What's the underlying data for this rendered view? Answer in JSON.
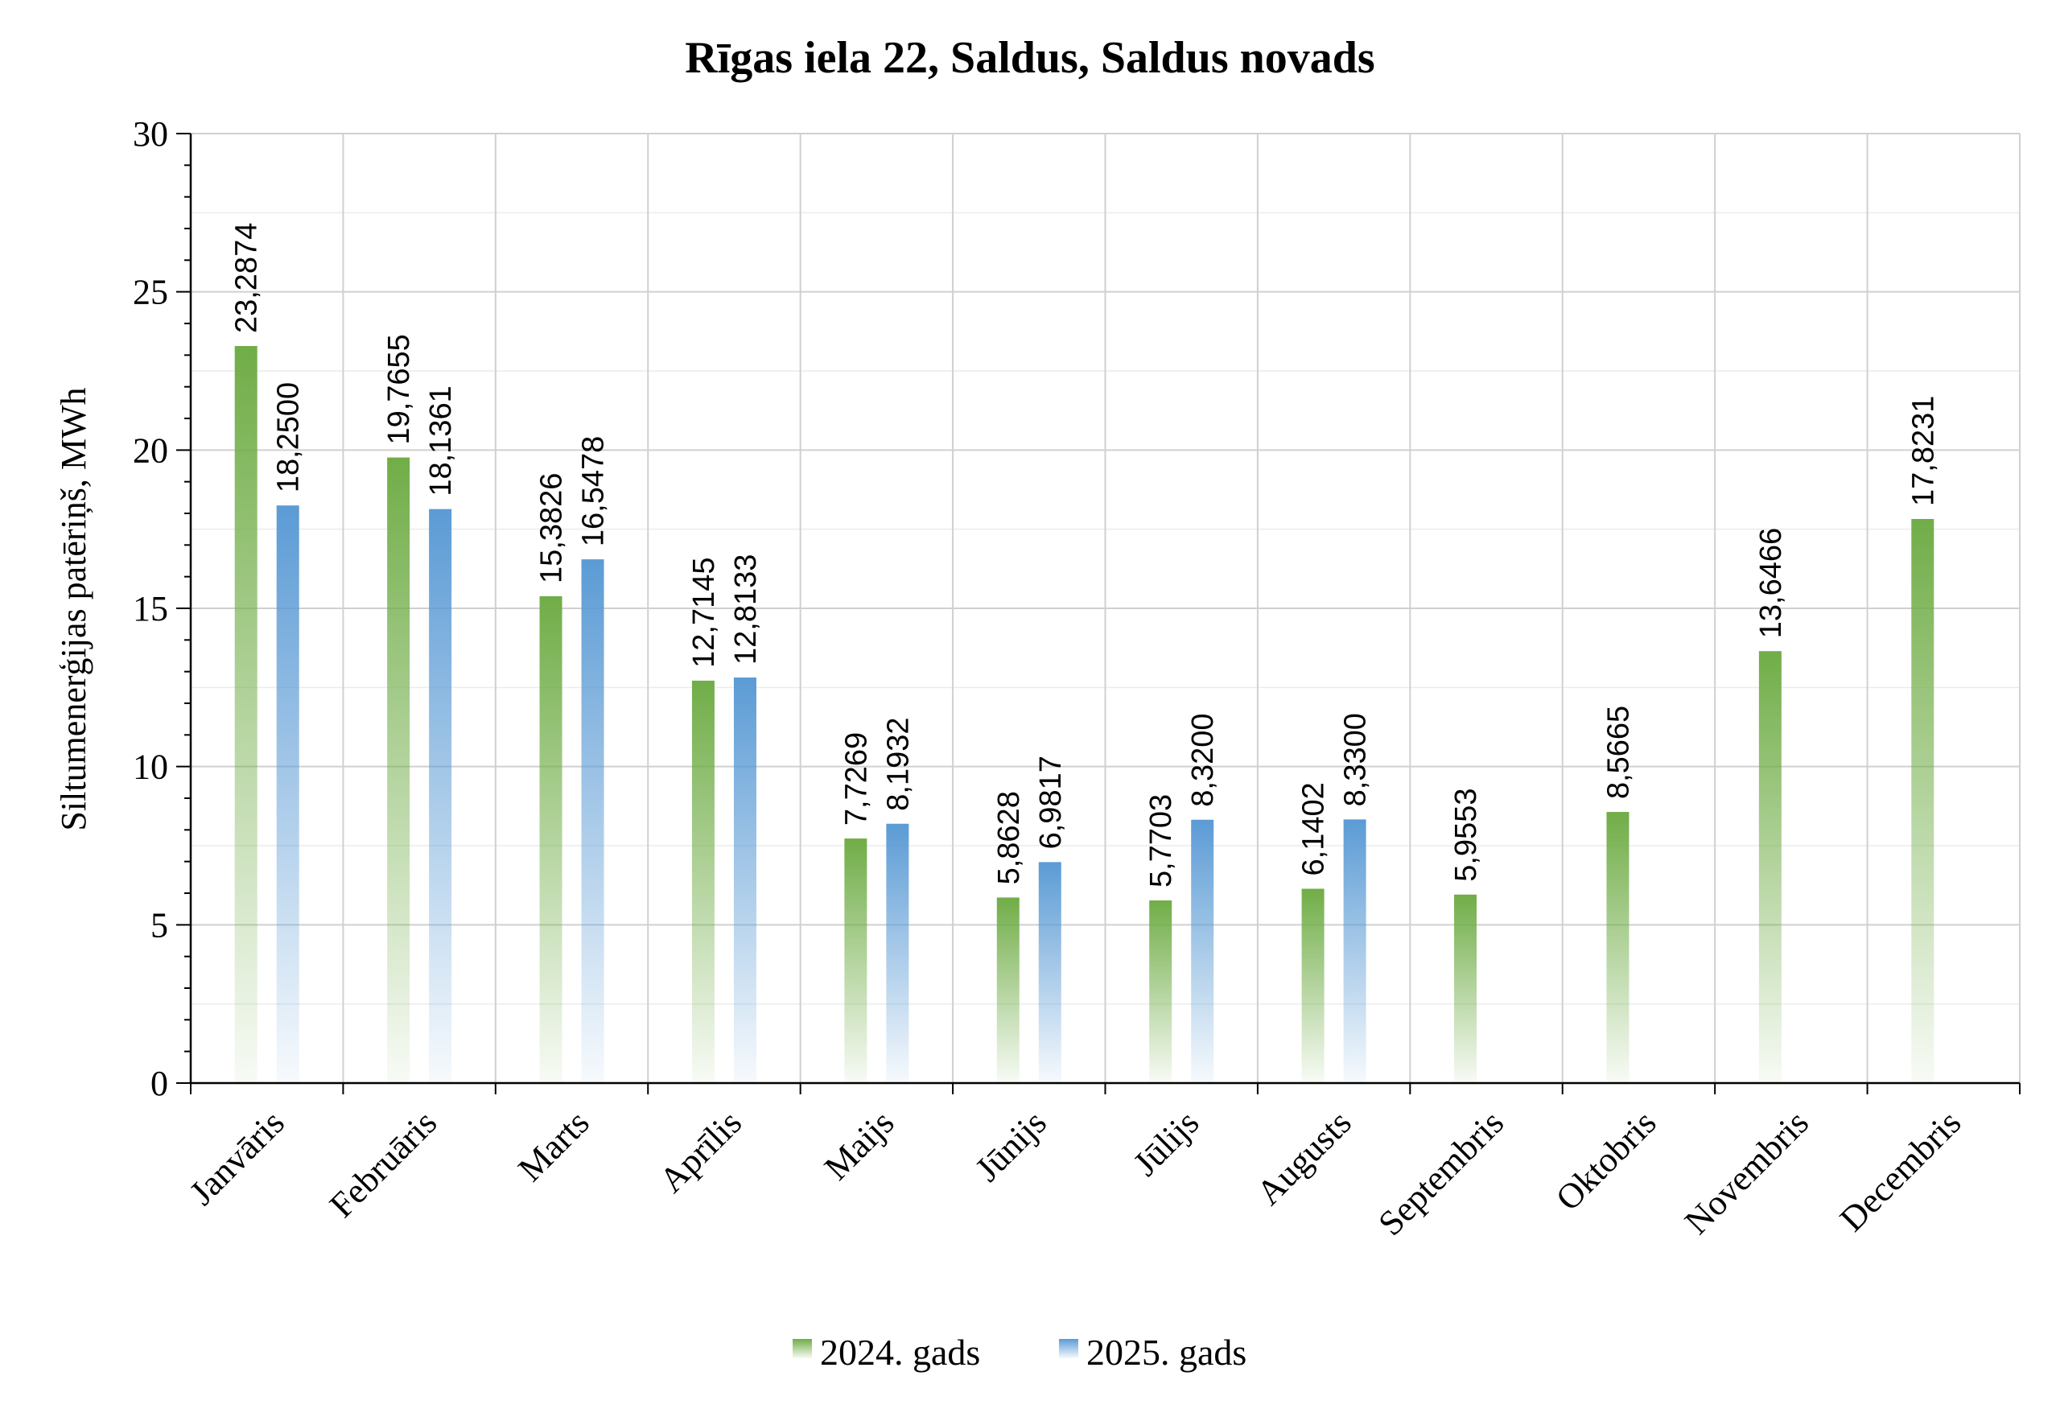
{
  "chart_data": {
    "type": "bar",
    "title": "Rīgas iela 22, Saldus, Saldus novads",
    "xlabel": "",
    "ylabel": "Siltumenerģijas patēriņš, MWh",
    "ylim": [
      0,
      30
    ],
    "yticks": [
      "0",
      "5",
      "10",
      "15",
      "20",
      "25",
      "30"
    ],
    "grid": true,
    "legend_position": "bottom",
    "categories": [
      "Janvāris",
      "Februāris",
      "Marts",
      "Aprīlis",
      "Maijs",
      "Jūnijs",
      "Jūlijs",
      "Augusts",
      "Septembris",
      "Oktobris",
      "Novembris",
      "Decembris"
    ],
    "series": [
      {
        "name": "2024. gads",
        "color": "#70ad47",
        "values": [
          23.2874,
          19.7655,
          15.3826,
          12.7145,
          7.7269,
          5.8628,
          5.7703,
          6.1402,
          5.9553,
          8.5665,
          13.6466,
          17.8231
        ],
        "labels": [
          "23,2874",
          "19,7655",
          "15,3826",
          "12,7145",
          "7,7269",
          "5,8628",
          "5,7703",
          "6,1402",
          "5,9553",
          "8,5665",
          "13,6466",
          "17,8231"
        ]
      },
      {
        "name": "2025. gads",
        "color": "#5b9bd5",
        "values": [
          18.25,
          18.1361,
          16.5478,
          12.8133,
          8.1932,
          6.9817,
          8.32,
          8.33,
          null,
          null,
          null,
          null
        ],
        "labels": [
          "18,2500",
          "18,1361",
          "16,5478",
          "12,8133",
          "8,1932",
          "6,9817",
          "8,3200",
          "8,3300",
          null,
          null,
          null,
          null
        ]
      }
    ]
  }
}
